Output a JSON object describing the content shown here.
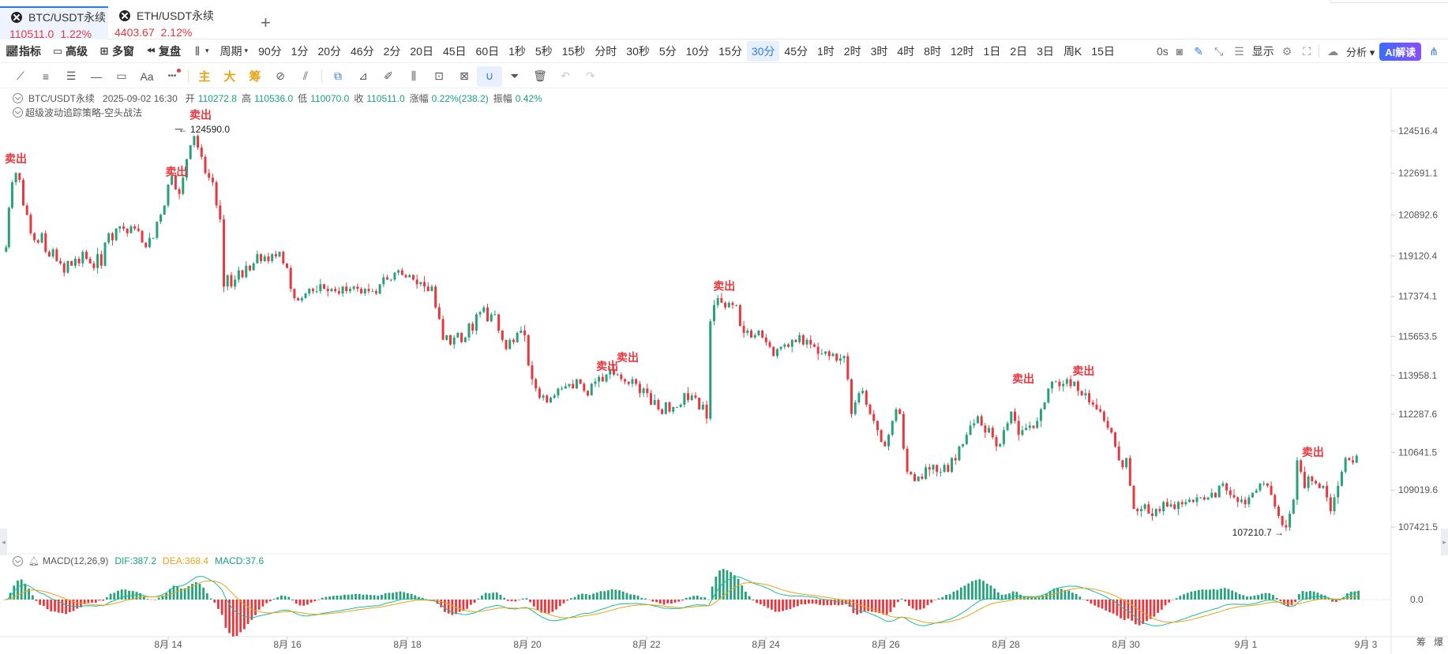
{
  "tabs": [
    {
      "symbol": "BTC/USDT永续",
      "price": "110511.0",
      "change": "1.22%"
    },
    {
      "symbol": "ETH/USDT永续",
      "price": "4403.67",
      "change": "2.12%"
    }
  ],
  "toolbar": {
    "indicator": "指标",
    "advanced": "高级",
    "multi_window": "多窗",
    "replay": "复盘",
    "period_menu": "周期",
    "periods": [
      "90分",
      "1分",
      "20分",
      "46分",
      "2分",
      "20日",
      "45日",
      "60日",
      "1秒",
      "5秒",
      "15秒",
      "分时",
      "30秒",
      "5分",
      "10分",
      "15分",
      "30分",
      "45分",
      "1时",
      "2时",
      "3时",
      "4时",
      "8时",
      "12时",
      "1日",
      "2日",
      "3日",
      "周K",
      "15日"
    ],
    "active_period": "30分",
    "countdown": "0s",
    "display": "显示",
    "analysis": "分析",
    "ai": "AI解读"
  },
  "draw_tools": {
    "main": "主",
    "big": "大",
    "chip": "筹",
    "text": "Aa",
    "more": "•••"
  },
  "info": {
    "symbol": "BTC/USDT永续",
    "datetime": "2025-09-02 16:30",
    "open_label": "开",
    "open": "110272.8",
    "high_label": "高",
    "high": "110536.0",
    "low_label": "低",
    "low": "110070.0",
    "close_label": "收",
    "close": "110511.0",
    "chg_label": "涨幅",
    "chg": "0.22%(238.2)",
    "amp_label": "振幅",
    "amp": "0.42%"
  },
  "strategy": "超级波动追踪策略-空头战法",
  "macd": {
    "label": "MACD(12,26,9)",
    "dif": "DIF:387.2",
    "dea": "DEA:368.4",
    "val": "MACD:37.6"
  },
  "chart_data": {
    "type": "candlestick",
    "y_ticks": [
      "124516.4",
      "122691.1",
      "120892.6",
      "119120.4",
      "117374.1",
      "115653.5",
      "113958.1",
      "112287.6",
      "110641.5",
      "109019.6",
      "107421.5"
    ],
    "x_ticks": [
      "8月 14",
      "8月 16",
      "8月 18",
      "8月 20",
      "8月 22",
      "8月 24",
      "8月 26",
      "8月 28",
      "8月 30",
      "9月 1",
      "9月 3"
    ],
    "high_label": "124590.0",
    "low_label": "107210.7",
    "sell_label": "卖出",
    "macd_zero": "0.0",
    "corner_labels": [
      "筹",
      "爆"
    ],
    "close_path": [
      [
        0,
        119300
      ],
      [
        3,
        119500
      ],
      [
        6,
        121200
      ],
      [
        10,
        122300
      ],
      [
        14,
        122700
      ],
      [
        18,
        122400
      ],
      [
        22,
        121300
      ],
      [
        26,
        120900
      ],
      [
        30,
        120100
      ],
      [
        34,
        119800
      ],
      [
        38,
        119700
      ],
      [
        42,
        120100
      ],
      [
        46,
        119300
      ],
      [
        50,
        119100
      ],
      [
        54,
        119400
      ],
      [
        58,
        118900
      ],
      [
        62,
        118800
      ],
      [
        66,
        118400
      ],
      [
        70,
        118900
      ],
      [
        74,
        118700
      ],
      [
        78,
        119000
      ],
      [
        82,
        118800
      ],
      [
        86,
        119300
      ],
      [
        90,
        119000
      ],
      [
        94,
        118800
      ],
      [
        98,
        118600
      ],
      [
        102,
        119200
      ],
      [
        106,
        118700
      ],
      [
        110,
        119700
      ],
      [
        114,
        120100
      ],
      [
        118,
        119800
      ],
      [
        122,
        120300
      ],
      [
        126,
        120400
      ],
      [
        130,
        120300
      ],
      [
        134,
        120100
      ],
      [
        138,
        120400
      ],
      [
        142,
        120300
      ],
      [
        146,
        120200
      ],
      [
        150,
        119700
      ],
      [
        154,
        119500
      ],
      [
        158,
        119900
      ],
      [
        162,
        119900
      ],
      [
        166,
        120600
      ],
      [
        170,
        120900
      ],
      [
        174,
        121300
      ],
      [
        178,
        122200
      ],
      [
        182,
        122600
      ],
      [
        186,
        122000
      ],
      [
        190,
        121800
      ],
      [
        194,
        122500
      ],
      [
        198,
        123300
      ],
      [
        202,
        123900
      ],
      [
        206,
        124300
      ],
      [
        210,
        123800
      ],
      [
        214,
        123400
      ],
      [
        218,
        122700
      ],
      [
        222,
        122500
      ],
      [
        226,
        122300
      ],
      [
        230,
        121300
      ],
      [
        234,
        120700
      ],
      [
        238,
        117800
      ],
      [
        242,
        118300
      ],
      [
        246,
        117800
      ],
      [
        250,
        118100
      ],
      [
        254,
        118500
      ],
      [
        258,
        118200
      ],
      [
        262,
        118700
      ],
      [
        266,
        118500
      ],
      [
        270,
        118800
      ],
      [
        274,
        119200
      ],
      [
        278,
        118900
      ],
      [
        282,
        119100
      ],
      [
        286,
        118900
      ],
      [
        290,
        119200
      ],
      [
        294,
        119100
      ],
      [
        298,
        119300
      ],
      [
        302,
        118800
      ],
      [
        306,
        118600
      ],
      [
        310,
        117700
      ],
      [
        314,
        117300
      ],
      [
        318,
        117200
      ],
      [
        322,
        117300
      ],
      [
        326,
        117500
      ],
      [
        330,
        117700
      ],
      [
        334,
        117600
      ],
      [
        338,
        117600
      ],
      [
        342,
        117900
      ],
      [
        346,
        117700
      ],
      [
        350,
        117600
      ],
      [
        354,
        117700
      ],
      [
        358,
        117600
      ],
      [
        362,
        117500
      ],
      [
        366,
        117800
      ],
      [
        370,
        117600
      ],
      [
        374,
        117700
      ],
      [
        378,
        117800
      ],
      [
        382,
        117700
      ],
      [
        386,
        117500
      ],
      [
        390,
        117700
      ],
      [
        394,
        117600
      ],
      [
        398,
        117600
      ],
      [
        402,
        117500
      ],
      [
        406,
        117900
      ],
      [
        410,
        118200
      ],
      [
        414,
        118100
      ],
      [
        418,
        118100
      ],
      [
        422,
        118400
      ],
      [
        426,
        118500
      ],
      [
        430,
        118300
      ],
      [
        434,
        118200
      ],
      [
        438,
        118300
      ],
      [
        442,
        118100
      ],
      [
        446,
        117900
      ],
      [
        450,
        118000
      ],
      [
        454,
        117800
      ],
      [
        458,
        117600
      ],
      [
        462,
        117800
      ],
      [
        466,
        116900
      ],
      [
        470,
        116400
      ],
      [
        474,
        115500
      ],
      [
        478,
        115700
      ],
      [
        482,
        115300
      ],
      [
        486,
        115600
      ],
      [
        490,
        115800
      ],
      [
        494,
        115400
      ],
      [
        498,
        115600
      ],
      [
        502,
        116200
      ],
      [
        506,
        115900
      ],
      [
        510,
        116600
      ],
      [
        514,
        116700
      ],
      [
        518,
        116900
      ],
      [
        522,
        116300
      ],
      [
        526,
        116600
      ],
      [
        530,
        116600
      ],
      [
        534,
        115900
      ],
      [
        538,
        115500
      ],
      [
        542,
        115100
      ],
      [
        546,
        115500
      ],
      [
        550,
        115400
      ],
      [
        554,
        115800
      ],
      [
        558,
        115900
      ],
      [
        562,
        115700
      ],
      [
        566,
        114400
      ],
      [
        570,
        113800
      ],
      [
        574,
        113400
      ],
      [
        578,
        113000
      ],
      [
        582,
        113100
      ],
      [
        586,
        112800
      ],
      [
        590,
        113000
      ],
      [
        594,
        113100
      ],
      [
        598,
        113400
      ],
      [
        602,
        113400
      ],
      [
        606,
        113500
      ],
      [
        610,
        113600
      ],
      [
        614,
        113400
      ],
      [
        618,
        113800
      ],
      [
        622,
        113600
      ],
      [
        626,
        113300
      ],
      [
        630,
        113100
      ],
      [
        634,
        113600
      ],
      [
        638,
        113700
      ],
      [
        642,
        113900
      ],
      [
        646,
        113700
      ],
      [
        650,
        114000
      ],
      [
        654,
        114200
      ],
      [
        658,
        114000
      ],
      [
        662,
        114000
      ],
      [
        666,
        113800
      ],
      [
        670,
        113700
      ],
      [
        674,
        113600
      ],
      [
        678,
        113800
      ],
      [
        682,
        113600
      ],
      [
        686,
        113200
      ],
      [
        690,
        113400
      ],
      [
        694,
        113200
      ],
      [
        698,
        112700
      ],
      [
        702,
        112900
      ],
      [
        706,
        112500
      ],
      [
        710,
        112300
      ],
      [
        714,
        112800
      ],
      [
        718,
        112400
      ],
      [
        722,
        112600
      ],
      [
        726,
        112600
      ],
      [
        730,
        112700
      ],
      [
        734,
        113200
      ],
      [
        738,
        112900
      ],
      [
        742,
        113100
      ],
      [
        746,
        113000
      ],
      [
        750,
        112500
      ],
      [
        754,
        112700
      ],
      [
        758,
        112100
      ],
      [
        762,
        116300
      ],
      [
        766,
        117000
      ],
      [
        770,
        117300
      ],
      [
        774,
        117100
      ],
      [
        778,
        116900
      ],
      [
        782,
        117100
      ],
      [
        786,
        117000
      ],
      [
        790,
        117000
      ],
      [
        794,
        116100
      ],
      [
        798,
        115800
      ],
      [
        802,
        115900
      ],
      [
        806,
        115600
      ],
      [
        810,
        115700
      ],
      [
        814,
        115900
      ],
      [
        818,
        115600
      ],
      [
        822,
        115400
      ],
      [
        826,
        115200
      ],
      [
        830,
        114800
      ],
      [
        834,
        115100
      ],
      [
        838,
        115200
      ],
      [
        842,
        115300
      ],
      [
        846,
        115200
      ],
      [
        850,
        115500
      ],
      [
        854,
        115400
      ],
      [
        858,
        115700
      ],
      [
        862,
        115300
      ],
      [
        866,
        115500
      ],
      [
        870,
        115300
      ],
      [
        874,
        115200
      ],
      [
        878,
        114900
      ],
      [
        882,
        114900
      ],
      [
        886,
        115000
      ],
      [
        890,
        114800
      ],
      [
        894,
        114900
      ],
      [
        898,
        114600
      ],
      [
        902,
        114700
      ],
      [
        906,
        114800
      ],
      [
        910,
        113800
      ],
      [
        914,
        112300
      ],
      [
        918,
        112800
      ],
      [
        922,
        113200
      ],
      [
        926,
        113300
      ],
      [
        930,
        112700
      ],
      [
        934,
        112300
      ],
      [
        938,
        112000
      ],
      [
        942,
        111600
      ],
      [
        946,
        111100
      ],
      [
        950,
        110900
      ],
      [
        954,
        111400
      ],
      [
        958,
        112000
      ],
      [
        962,
        112500
      ],
      [
        966,
        112300
      ],
      [
        970,
        110800
      ],
      [
        974,
        109800
      ],
      [
        978,
        109700
      ],
      [
        982,
        109400
      ],
      [
        986,
        109600
      ],
      [
        990,
        109500
      ],
      [
        994,
        110000
      ],
      [
        998,
        109900
      ],
      [
        1002,
        110100
      ],
      [
        1006,
        109800
      ],
      [
        1010,
        109800
      ],
      [
        1014,
        110100
      ],
      [
        1018,
        109800
      ],
      [
        1022,
        110400
      ],
      [
        1026,
        110300
      ],
      [
        1030,
        110900
      ],
      [
        1034,
        111000
      ],
      [
        1038,
        111400
      ],
      [
        1042,
        111800
      ],
      [
        1046,
        111900
      ],
      [
        1050,
        112200
      ],
      [
        1054,
        111800
      ],
      [
        1058,
        111500
      ],
      [
        1062,
        111700
      ],
      [
        1066,
        111300
      ],
      [
        1070,
        110900
      ],
      [
        1074,
        111000
      ],
      [
        1078,
        111600
      ],
      [
        1082,
        111900
      ],
      [
        1086,
        112400
      ],
      [
        1090,
        112000
      ],
      [
        1094,
        111400
      ],
      [
        1098,
        111600
      ],
      [
        1102,
        111700
      ],
      [
        1106,
        111800
      ],
      [
        1110,
        111700
      ],
      [
        1114,
        112000
      ],
      [
        1118,
        112500
      ],
      [
        1122,
        112800
      ],
      [
        1126,
        113400
      ],
      [
        1130,
        113700
      ],
      [
        1134,
        113700
      ],
      [
        1138,
        113500
      ],
      [
        1142,
        113600
      ],
      [
        1146,
        113800
      ],
      [
        1150,
        113500
      ],
      [
        1154,
        113700
      ],
      [
        1158,
        113300
      ],
      [
        1162,
        113100
      ],
      [
        1166,
        113200
      ],
      [
        1170,
        112800
      ],
      [
        1174,
        112700
      ],
      [
        1178,
        112500
      ],
      [
        1182,
        112400
      ],
      [
        1186,
        112000
      ],
      [
        1190,
        111700
      ],
      [
        1194,
        111500
      ],
      [
        1198,
        110900
      ],
      [
        1202,
        110300
      ],
      [
        1206,
        110000
      ],
      [
        1210,
        110400
      ],
      [
        1214,
        109200
      ],
      [
        1218,
        108200
      ],
      [
        1222,
        108100
      ],
      [
        1226,
        108200
      ],
      [
        1230,
        108400
      ],
      [
        1234,
        108000
      ],
      [
        1238,
        107900
      ],
      [
        1242,
        108200
      ],
      [
        1246,
        108100
      ],
      [
        1250,
        108500
      ],
      [
        1254,
        108300
      ],
      [
        1258,
        108400
      ],
      [
        1262,
        108200
      ],
      [
        1266,
        108500
      ],
      [
        1270,
        108400
      ],
      [
        1274,
        108500
      ],
      [
        1278,
        108600
      ],
      [
        1282,
        108500
      ],
      [
        1286,
        108700
      ],
      [
        1290,
        108700
      ],
      [
        1294,
        108600
      ],
      [
        1298,
        108700
      ],
      [
        1302,
        108900
      ],
      [
        1306,
        108700
      ],
      [
        1310,
        109200
      ],
      [
        1314,
        109300
      ],
      [
        1318,
        109000
      ],
      [
        1322,
        108800
      ],
      [
        1326,
        108700
      ],
      [
        1330,
        108500
      ],
      [
        1334,
        108600
      ],
      [
        1338,
        108400
      ],
      [
        1342,
        108700
      ],
      [
        1346,
        108900
      ],
      [
        1350,
        109000
      ],
      [
        1354,
        109300
      ],
      [
        1358,
        109300
      ],
      [
        1362,
        109200
      ],
      [
        1366,
        108800
      ],
      [
        1370,
        108300
      ],
      [
        1374,
        107900
      ],
      [
        1378,
        107500
      ],
      [
        1382,
        107400
      ],
      [
        1386,
        108000
      ],
      [
        1390,
        108600
      ],
      [
        1394,
        110300
      ],
      [
        1398,
        109800
      ],
      [
        1402,
        109100
      ],
      [
        1406,
        109600
      ],
      [
        1410,
        109400
      ],
      [
        1414,
        109300
      ],
      [
        1418,
        109100
      ],
      [
        1422,
        109200
      ],
      [
        1426,
        108700
      ],
      [
        1430,
        108100
      ],
      [
        1434,
        108700
      ],
      [
        1438,
        109200
      ],
      [
        1442,
        109800
      ],
      [
        1446,
        110400
      ],
      [
        1450,
        110300
      ],
      [
        1454,
        110200
      ],
      [
        1458,
        110500
      ]
    ],
    "sell_signals": [
      [
        0,
        123150
      ],
      [
        173,
        122600
      ],
      [
        199,
        125050
      ],
      [
        763,
        117650
      ],
      [
        637,
        114200
      ],
      [
        659,
        114570
      ],
      [
        1085,
        113660
      ],
      [
        1150,
        114000
      ],
      [
        1397,
        110480
      ]
    ]
  }
}
